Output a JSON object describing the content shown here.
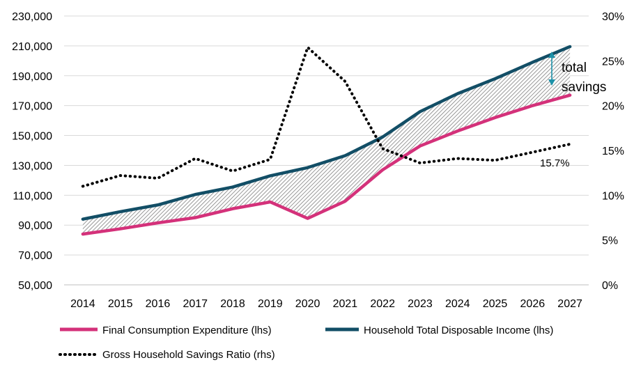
{
  "colors": {
    "consumption": "#d4317a",
    "income": "#124e66",
    "savings_ratio": "#000000",
    "arrow": "#1d91a8",
    "hatch": "#7f7f7f",
    "grid": "#d9d9d9"
  },
  "chart_data": {
    "type": "line",
    "categories": [
      "2014",
      "2015",
      "2016",
      "2017",
      "2018",
      "2019",
      "2020",
      "2021",
      "2022",
      "2023",
      "2024",
      "2025",
      "2026",
      "2027"
    ],
    "series": [
      {
        "name": "Final Consumption Expenditure (lhs)",
        "axis": "left",
        "style": "solid",
        "values": [
          84000,
          87500,
          91500,
          95000,
          101000,
          105500,
          94500,
          106000,
          127000,
          143000,
          153000,
          162000,
          170000,
          177000
        ]
      },
      {
        "name": "Household Total Disposable Income (lhs)",
        "axis": "left",
        "style": "solid",
        "values": [
          94000,
          99000,
          103500,
          110500,
          115500,
          123000,
          128500,
          136500,
          149000,
          166000,
          178000,
          188000,
          199000,
          209500
        ]
      },
      {
        "name": "Gross Household Savings Ratio (rhs)",
        "axis": "right",
        "style": "dotted",
        "values": [
          11.0,
          12.2,
          11.9,
          14.1,
          12.7,
          14.0,
          26.5,
          22.7,
          15.2,
          13.6,
          14.1,
          13.9,
          14.8,
          15.7
        ]
      }
    ],
    "left_axis": {
      "min": 50000,
      "max": 230000,
      "step": 20000,
      "tick_labels": [
        "50,000",
        "70,000",
        "90,000",
        "110,000",
        "130,000",
        "150,000",
        "170,000",
        "190,000",
        "210,000",
        "230,000"
      ]
    },
    "right_axis": {
      "min": 0,
      "max": 30,
      "step": 5,
      "tick_labels": [
        "0%",
        "5%",
        "10%",
        "15%",
        "20%",
        "25%",
        "30%"
      ]
    },
    "grid": true,
    "legend_position": "bottom",
    "shaded_region": "between income and consumption (hatched)",
    "annotations": {
      "total_savings_line1": "total",
      "total_savings_line2": "savings",
      "last_ratio_label": "15.7%"
    }
  },
  "legend": [
    {
      "label": "Final Consumption Expenditure (lhs)"
    },
    {
      "label": "Household Total Disposable Income (lhs)"
    },
    {
      "label": "Gross Household Savings Ratio (rhs)"
    }
  ]
}
